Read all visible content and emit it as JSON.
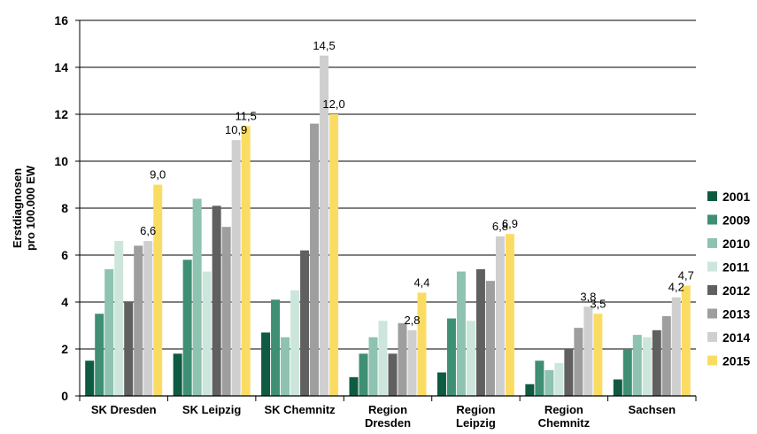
{
  "chart_data": {
    "type": "bar",
    "ylabel_lines": [
      "Erstdiagnosen",
      "pro 100.000 EW"
    ],
    "ylim": [
      0,
      16
    ],
    "yticks": [
      0,
      2,
      4,
      6,
      8,
      10,
      12,
      14,
      16
    ],
    "grid": true,
    "legend_position": "right",
    "categories": [
      [
        "SK Dresden"
      ],
      [
        "SK Leipzig"
      ],
      [
        "SK Chemnitz"
      ],
      [
        "Region",
        "Dresden"
      ],
      [
        "Region",
        "Leipzig"
      ],
      [
        "Region",
        "Chemnitz"
      ],
      [
        "Sachsen"
      ]
    ],
    "series": [
      {
        "name": "2001",
        "color": "#0e5a43",
        "values": [
          1.5,
          1.8,
          2.7,
          0.8,
          1.0,
          0.5,
          0.7
        ]
      },
      {
        "name": "2009",
        "color": "#3f8f74",
        "values": [
          3.5,
          5.8,
          4.1,
          1.8,
          3.3,
          1.5,
          2.0
        ]
      },
      {
        "name": "2010",
        "color": "#8dc3b0",
        "values": [
          5.4,
          8.4,
          2.5,
          2.5,
          5.3,
          1.1,
          2.6
        ]
      },
      {
        "name": "2011",
        "color": "#cde6dc",
        "values": [
          6.6,
          5.3,
          4.5,
          3.2,
          3.2,
          1.4,
          2.5
        ]
      },
      {
        "name": "2012",
        "color": "#606060",
        "values": [
          4.0,
          8.1,
          6.2,
          1.8,
          5.4,
          2.0,
          2.8
        ]
      },
      {
        "name": "2013",
        "color": "#9e9e9e",
        "values": [
          6.4,
          7.2,
          11.6,
          3.1,
          4.9,
          2.9,
          3.4
        ]
      },
      {
        "name": "2014",
        "color": "#cfcfcf",
        "values": [
          6.6,
          10.9,
          14.5,
          2.8,
          6.8,
          3.8,
          4.2
        ]
      },
      {
        "name": "2015",
        "color": "#fbdc63",
        "values": [
          9.0,
          11.5,
          12.0,
          4.4,
          6.9,
          3.5,
          4.7
        ]
      }
    ],
    "data_labels": [
      {
        "category": 0,
        "series": 6,
        "text": "6,6"
      },
      {
        "category": 0,
        "series": 7,
        "text": "9,0"
      },
      {
        "category": 1,
        "series": 6,
        "text": "10,9"
      },
      {
        "category": 1,
        "series": 7,
        "text": "11,5"
      },
      {
        "category": 2,
        "series": 6,
        "text": "14,5"
      },
      {
        "category": 2,
        "series": 7,
        "text": "12,0"
      },
      {
        "category": 3,
        "series": 6,
        "text": "2,8"
      },
      {
        "category": 3,
        "series": 7,
        "text": "4,4"
      },
      {
        "category": 4,
        "series": 6,
        "text": "6,8"
      },
      {
        "category": 4,
        "series": 7,
        "text": "6,9"
      },
      {
        "category": 5,
        "series": 6,
        "text": "3,8"
      },
      {
        "category": 5,
        "series": 7,
        "text": "3,5"
      },
      {
        "category": 6,
        "series": 6,
        "text": "4,2"
      },
      {
        "category": 6,
        "series": 7,
        "text": "4,7"
      }
    ]
  }
}
